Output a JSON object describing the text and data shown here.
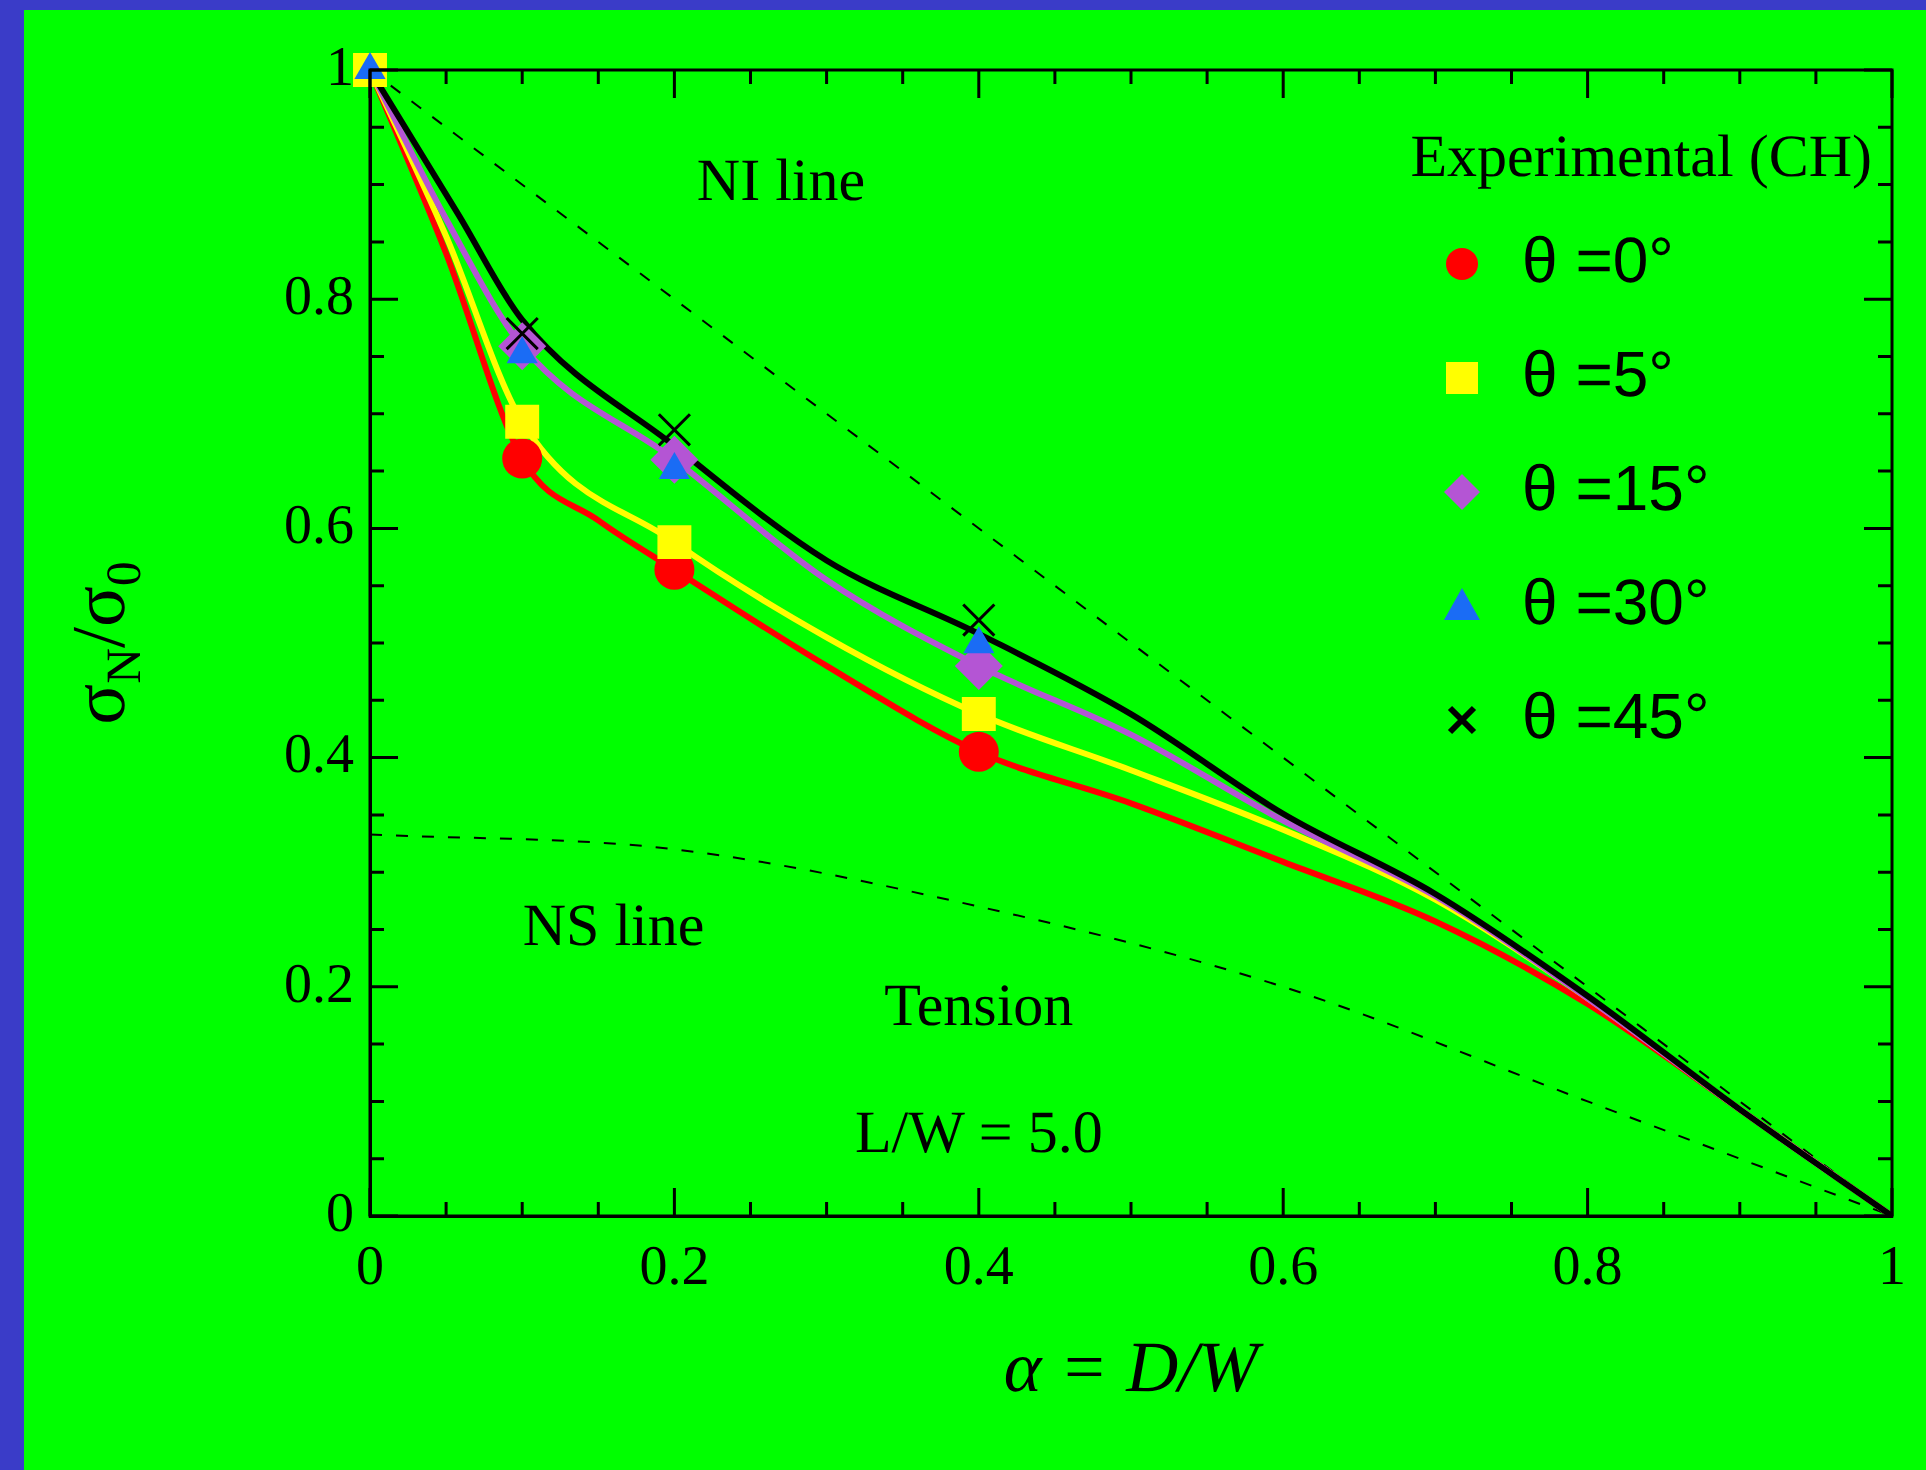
{
  "chart_data": {
    "type": "line",
    "xlabel": "α = D/W",
    "ylabel": "σ$_{N}$/σ$_{0}$",
    "legend_title": "Experimental (CH)",
    "legend": "top right",
    "grid": false,
    "xlim": [
      0,
      1
    ],
    "ylim": [
      0,
      1
    ],
    "xticks": [
      0,
      {
        "value": 0.05,
        "label": null
      },
      {
        "value": 0.1,
        "label": null
      },
      {
        "value": 0.15,
        "label": null
      },
      0.2,
      {
        "value": 0.25,
        "label": null
      },
      {
        "value": 0.3,
        "label": null
      },
      {
        "value": 0.35,
        "label": null
      },
      0.4,
      {
        "value": 0.45,
        "label": null
      },
      {
        "value": 0.5,
        "label": null
      },
      {
        "value": 0.55,
        "label": null
      },
      0.6,
      {
        "value": 0.65,
        "label": null
      },
      {
        "value": 0.7,
        "label": null
      },
      {
        "value": 0.75,
        "label": null
      },
      0.8,
      {
        "value": 0.85,
        "label": null
      },
      {
        "value": 0.9,
        "label": null
      },
      {
        "value": 0.95,
        "label": null
      },
      1
    ],
    "yticks": [
      0,
      {
        "value": 0.05,
        "label": null
      },
      {
        "value": 0.1,
        "label": null
      },
      {
        "value": 0.15,
        "label": null
      },
      0.2,
      {
        "value": 0.25,
        "label": null
      },
      {
        "value": 0.3,
        "label": null
      },
      {
        "value": 0.35,
        "label": null
      },
      0.4,
      {
        "value": 0.45,
        "label": null
      },
      {
        "value": 0.5,
        "label": null
      },
      {
        "value": 0.55,
        "label": null
      },
      0.6,
      {
        "value": 0.65,
        "label": null
      },
      {
        "value": 0.7,
        "label": null
      },
      {
        "value": 0.75,
        "label": null
      },
      0.8,
      {
        "value": 0.85,
        "label": null
      },
      {
        "value": 0.9,
        "label": null
      },
      {
        "value": 0.95,
        "label": null
      },
      1
    ],
    "series": [
      {
        "color": "#000000",
        "line_style": "dashed",
        "marker": "none",
        "x": [
          0,
          1
        ],
        "values": [
          1,
          0
        ]
      },
      {
        "color": "#000000",
        "line_style": "dashed",
        "marker": "none",
        "x": [
          0,
          0.2,
          0.4,
          0.6,
          0.8,
          0.9,
          1
        ],
        "values": [
          0.333,
          0.32,
          0.27,
          0.2,
          0.1,
          0.05,
          0
        ]
      },
      {
        "color": "#ff0000",
        "line_style": "solid",
        "marker": "none",
        "x": [
          0,
          0.05,
          0.1,
          0.15,
          0.2,
          0.3,
          0.4,
          0.5,
          0.6,
          0.7,
          0.8,
          0.9,
          1
        ],
        "values": [
          1,
          0.84,
          0.661,
          0.607,
          0.564,
          0.48,
          0.405,
          0.36,
          0.309,
          0.257,
          0.185,
          0.093,
          0
        ]
      },
      {
        "color": "#ffff00",
        "line_style": "solid",
        "marker": "none",
        "x": [
          0,
          0.05,
          0.1,
          0.2,
          0.3,
          0.4,
          0.5,
          0.6,
          0.7,
          0.8,
          0.9,
          1
        ],
        "values": [
          1,
          0.855,
          0.693,
          0.588,
          0.505,
          0.438,
          0.389,
          0.337,
          0.276,
          0.19,
          0.093,
          0
        ]
      },
      {
        "color": "#b455d4",
        "line_style": "solid",
        "marker": "none",
        "x": [
          0,
          0.05,
          0.1,
          0.2,
          0.3,
          0.4,
          0.5,
          0.6,
          0.7,
          0.8,
          0.9,
          1
        ],
        "values": [
          1,
          0.87,
          0.759,
          0.66,
          0.555,
          0.48,
          0.42,
          0.345,
          0.279,
          0.19,
          0.093,
          0
        ]
      },
      {
        "color": "#000000",
        "line_style": "solid",
        "marker": "none",
        "x": [
          0,
          0.058,
          0.1,
          0.2,
          0.3,
          0.4,
          0.5,
          0.6,
          0.7,
          0.8,
          0.9,
          1
        ],
        "values": [
          1,
          0.874,
          0.782,
          0.672,
          0.572,
          0.508,
          0.438,
          0.351,
          0.281,
          0.192,
          0.093,
          0
        ]
      },
      {
        "type": "scatter",
        "name": "θ =0°",
        "color": "#ff0000",
        "marker": "circle",
        "x": [
          0.1,
          0.2,
          0.4
        ],
        "values": [
          0.661,
          0.564,
          0.405
        ]
      },
      {
        "type": "scatter",
        "name": "θ =5°",
        "color": "#ffff00",
        "marker": "square",
        "x": [
          0,
          0.1,
          0.2,
          0.4
        ],
        "values": [
          1,
          0.693,
          0.588,
          0.438
        ]
      },
      {
        "type": "scatter",
        "name": "θ =15°",
        "color": "#b455d4",
        "marker": "diamond",
        "x": [
          0.1,
          0.2,
          0.4
        ],
        "values": [
          0.759,
          0.66,
          0.48
        ]
      },
      {
        "type": "scatter",
        "name": "θ =30°",
        "color": "#1a6cf5",
        "marker": "triangle",
        "x": [
          0,
          0.1,
          0.2,
          0.4
        ],
        "values": [
          1,
          0.752,
          0.651,
          0.499
        ]
      },
      {
        "type": "scatter",
        "name": "θ =45°",
        "color": "#000000",
        "marker": "cross",
        "x": [
          0.1,
          0.2,
          0.4
        ],
        "values": [
          0.77,
          0.686,
          0.52
        ]
      }
    ],
    "annotations": [
      "NI line",
      "NS line",
      "Tension",
      "L/W = 5.0"
    ]
  }
}
